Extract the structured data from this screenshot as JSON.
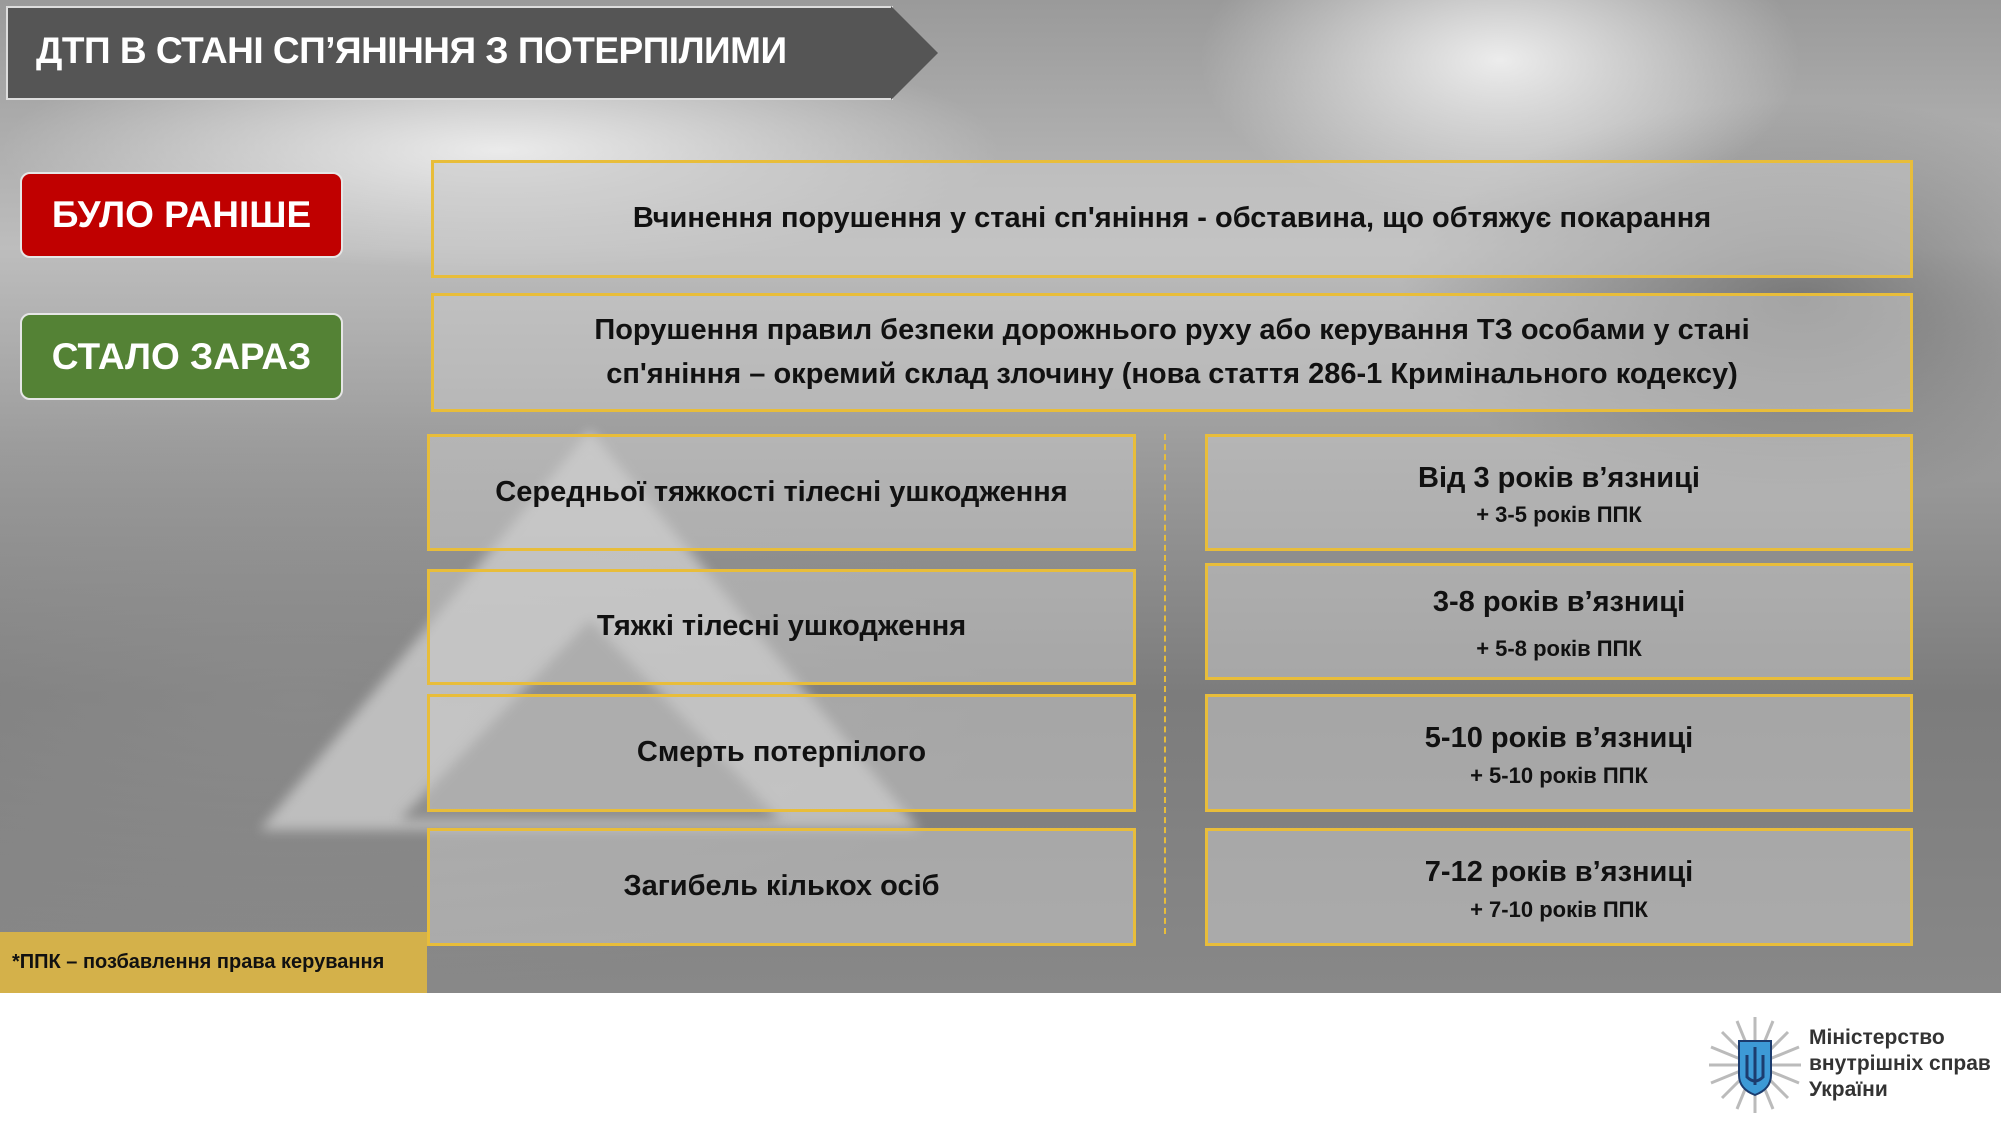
{
  "header": {
    "title": "ДТП В СТАНІ СП’ЯНІННЯ З ПОТЕРПІЛИМИ"
  },
  "labels": {
    "before": "БУЛО РАНІШЕ",
    "now": "СТАЛО ЗАРАЗ"
  },
  "before_text": "Вчинення порушення у стані сп'яніння - обставина, що обтяжує покарання",
  "now_text": {
    "line1": "Порушення правил безпеки дорожнього руху або керування ТЗ особами у стані",
    "line2": "сп'яніння – окремий склад злочину (нова стаття 286-1 Кримінального кодексу)"
  },
  "rows": [
    {
      "consequence": "Середньої тяжкості тілесні ушкодження",
      "penalty": "Від 3 років в’язниці",
      "license": "+ 3-5 років ППК"
    },
    {
      "consequence": "Тяжкі тілесні ушкодження",
      "penalty": "3-8 років в’язниці",
      "license": "+ 5-8 років ППК"
    },
    {
      "consequence": "Смерть потерпілого",
      "penalty": "5-10 років в’язниці",
      "license": "+ 5-10 років ППК"
    },
    {
      "consequence": "Загибель кількох осіб",
      "penalty": "7-12 років в’язниці",
      "license": "+ 7-10 років ППК"
    }
  ],
  "footnote": "*ППК – позбавлення права керування",
  "logo": {
    "line1": "Міністерство",
    "line2": "внутрішніх справ",
    "line3": "України"
  },
  "colors": {
    "before": "#c00000",
    "now": "#548235",
    "border": "#e8bd3a",
    "title_bg": "#555555"
  }
}
